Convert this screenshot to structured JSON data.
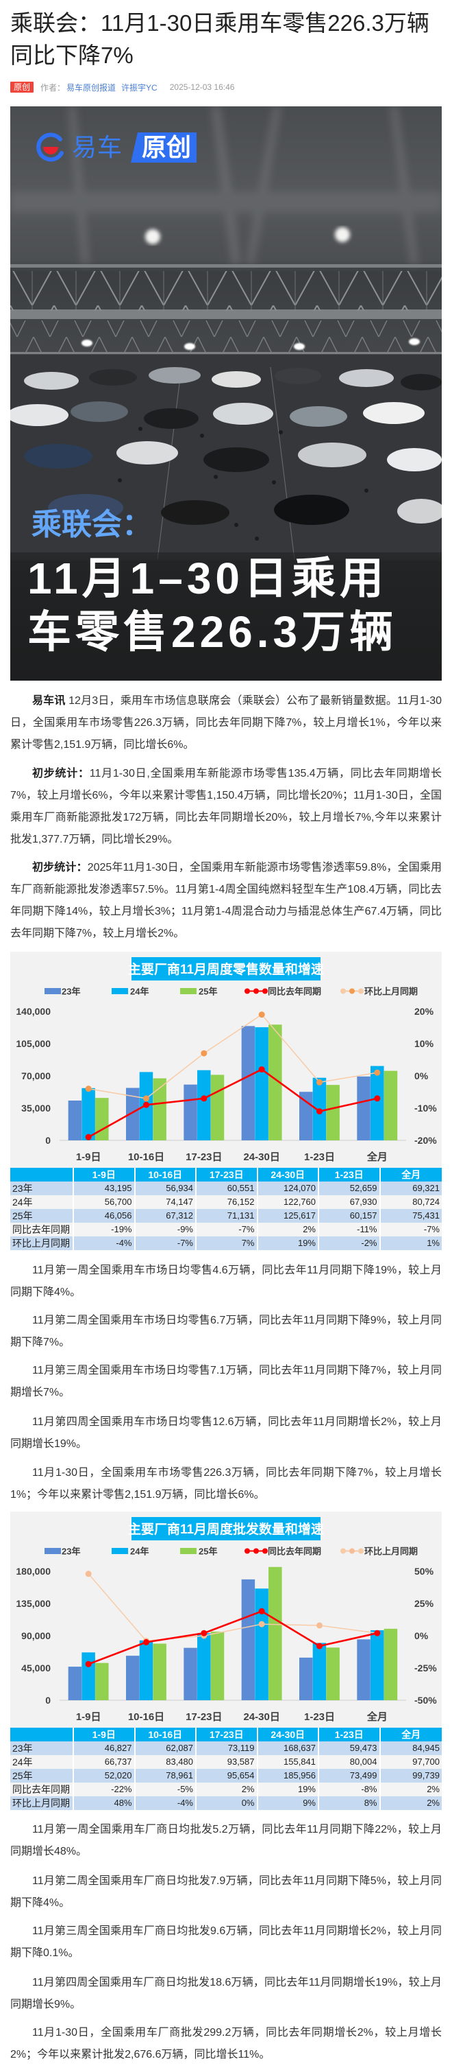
{
  "article": {
    "title": "乘联会：11月1-30日乘用车零售226.3万辆同比下降7%",
    "meta": {
      "badge": "原创",
      "author_label": "作者：",
      "authors": [
        "易车原创报道",
        "许振宇YC"
      ],
      "date": "2025-12-03 16:46"
    },
    "hero": {
      "logo_brand": "易车",
      "logo_tag": "原创",
      "subtitle": "乘联会：",
      "headline_line1": "11月1–30日乘用",
      "headline_line2": "车零售226.3万辆"
    },
    "paragraphs": [
      {
        "lead": "易车讯",
        "text": " 12月3日，乘用车市场信息联席会（乘联会）公布了最新销量数据。11月1-30日，全国乘用车市场零售226.3万辆，同比去年同期下降7%，较上月增长1%，今年以来累计零售2,151.9万辆，同比增长6%。"
      },
      {
        "lead": "初步统计：",
        "text": "11月1-30日,全国乘用车新能源市场零售135.4万辆，同比去年同期增长7%，较上月增长6%，今年以来累计零售1,150.4万辆，同比增长20%；11月1-30日，全国乘用车厂商新能源批发172万辆，同比去年同期增长20%，较上月增长7%,今年以来累计批发1,377.7万辆，同比增长29%。"
      },
      {
        "lead": "初步统计：",
        "text": "2025年11月1-30日，全国乘用车新能源市场零售渗透率59.8%，全国乘用车厂商新能源批发渗透率57.5%。11月第1-4周全国纯燃料轻型车生产108.4万辆，同比去年同期下降14%，较上月增长3%；11月第1-4周混合动力与插混总体生产67.4万辆，同比去年同期下降7%，较上月增长2%。"
      },
      {
        "text": "11月第一周全国乘用车市场日均零售4.6万辆，同比去年11月同期下降19%，较上月同期下降4%。"
      },
      {
        "text": "11月第二周全国乘用车市场日均零售6.7万辆，同比去年11月同期下降9%，较上月同期下降7%。"
      },
      {
        "text": "11月第三周全国乘用车市场日均零售7.1万辆，同比去年11月同期下降7%，较上月同期增长7%。"
      },
      {
        "text": "11月第四周全国乘用车市场日均零售12.6万辆，同比去年11月同期增长2%，较上月同期增长19%。"
      },
      {
        "text": "11月1-30日，全国乘用车市场零售226.3万辆，同比去年同期下降7%，较上月增长1%；今年以来累计零售2,151.9万辆，同比增长6%。"
      },
      {
        "text": "11月第一周全国乘用车厂商日均批发5.2万辆，同比去年11月同期下降22%，较上月同期增长48%。"
      },
      {
        "text": "11月第二周全国乘用车厂商日均批发7.9万辆，同比去年11月同期下降5%，较上月同期下降4%。"
      },
      {
        "text": "11月第三周全国乘用车厂商日均批发9.6万辆，同比去年11月同期增长2%，较上月同期下降0.1%。"
      },
      {
        "text": "11月第四周全国乘用车厂商日均批发18.6万辆，同比去年11月同期增长19%，较上月同期增长9%。"
      },
      {
        "text": "11月1-30日，全国乘用车厂商批发299.2万辆，同比去年同期增长2%，较上月增长2%；今年以来累计批发2,676.6万辆，同比增长11%。"
      }
    ]
  },
  "theme": {
    "badge_red": "#f0453a",
    "link_blue": "#4a7fd0",
    "brand_blue": "#2f6ff2",
    "hero_subtitle_blue": "#64a6f8",
    "table_header_blue": "#00b0f0",
    "table_row_blue": "#c5d9f1"
  },
  "chart_data": [
    {
      "type": "bar",
      "secondary_type": "line",
      "title": "主要厂商11月周度零售数量和增速",
      "title_bg": "#00b0f0",
      "categories": [
        "1-9日",
        "10-16日",
        "17-23日",
        "24-30日",
        "1-23日",
        "全月"
      ],
      "series": [
        {
          "name": "23年",
          "type": "bar",
          "axis": "left",
          "color": "#5b8bd5",
          "values": [
            43195,
            56934,
            60551,
            124070,
            52659,
            69321
          ]
        },
        {
          "name": "24年",
          "type": "bar",
          "axis": "left",
          "color": "#00b0f0",
          "values": [
            56700,
            74147,
            76152,
            122760,
            67930,
            80724
          ]
        },
        {
          "name": "25年",
          "type": "bar",
          "axis": "left",
          "color": "#92d050",
          "values": [
            46056,
            67312,
            71131,
            125617,
            60157,
            75431
          ]
        },
        {
          "name": "同比去年同期",
          "type": "line",
          "axis": "right",
          "unit": "%",
          "line_color": "#ff0000",
          "marker_color": "#ff0000",
          "values": [
            -19,
            -9,
            -7,
            2,
            -11,
            -7
          ]
        },
        {
          "name": "环比上月同期",
          "type": "line",
          "axis": "right",
          "unit": "%",
          "line_color": "#f8cba7",
          "marker_color": "#f29b50",
          "legend_edge_color": "#f8cba7",
          "values": [
            -4,
            -7,
            7,
            19,
            -2,
            1
          ]
        }
      ],
      "ylim": [
        0,
        140000
      ],
      "yticks": [
        0,
        35000,
        70000,
        105000,
        140000
      ],
      "y2lim": [
        -20,
        20
      ],
      "y2ticks": [
        -20,
        -10,
        0,
        10,
        20
      ],
      "xlabel": "",
      "ylabel": "",
      "legend": "top",
      "grid": false
    },
    {
      "type": "bar",
      "secondary_type": "line",
      "title": "主要厂商11月周度批发数量和增速",
      "title_bg": "#00b0f0",
      "categories": [
        "1-9日",
        "10-16日",
        "17-23日",
        "24-30日",
        "1-23日",
        "全月"
      ],
      "series": [
        {
          "name": "23年",
          "type": "bar",
          "axis": "left",
          "color": "#5b8bd5",
          "values": [
            46827,
            62087,
            73119,
            168637,
            59473,
            84945
          ]
        },
        {
          "name": "24年",
          "type": "bar",
          "axis": "left",
          "color": "#00b0f0",
          "values": [
            66737,
            83480,
            93587,
            155841,
            80004,
            97700
          ]
        },
        {
          "name": "25年",
          "type": "bar",
          "axis": "left",
          "color": "#92d050",
          "values": [
            52020,
            78961,
            95654,
            185956,
            73499,
            99739
          ]
        },
        {
          "name": "同比去年同期",
          "type": "line",
          "axis": "right",
          "unit": "%",
          "line_color": "#ff0000",
          "marker_color": "#ff0000",
          "values": [
            -22,
            -5,
            2,
            19,
            -8,
            2
          ]
        },
        {
          "name": "环比上月同期",
          "type": "line",
          "axis": "right",
          "unit": "%",
          "line_color": "#f8cba7",
          "marker_color": "#f6bd96",
          "legend_edge_color": "#f8cba7",
          "values": [
            48,
            -4,
            0,
            9,
            8,
            2
          ]
        }
      ],
      "ylim": [
        0,
        180000
      ],
      "yticks": [
        0,
        45000,
        90000,
        135000,
        180000
      ],
      "y2lim": [
        -50,
        50
      ],
      "y2ticks": [
        -50,
        -25,
        0,
        25,
        50
      ],
      "xlabel": "",
      "ylabel": "",
      "legend": "top",
      "grid": false
    }
  ]
}
